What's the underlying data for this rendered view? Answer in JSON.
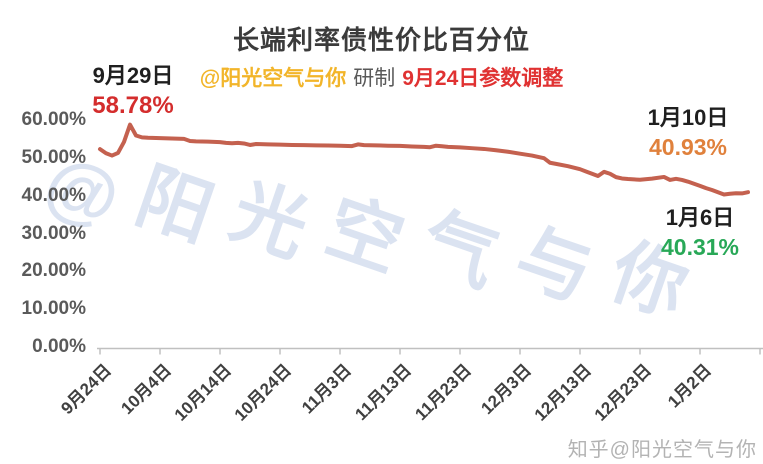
{
  "header": {
    "title": "长端利率债性价比百分位",
    "subtitle_author": "@阳光空气与你",
    "subtitle_middle": "研制",
    "subtitle_note": "9月24日参数调整"
  },
  "annotations": {
    "peak": {
      "date": "9月29日",
      "value": "58.78%"
    },
    "latest": {
      "date": "1月10日",
      "value": "40.93%"
    },
    "low": {
      "date": "1月6日",
      "value": "40.31%"
    }
  },
  "watermark": {
    "diagonal": "@阳光空气与你",
    "zhihu": "知乎@阳光空气与你"
  },
  "colors": {
    "line": "#c4614f",
    "title": "#3b3b3b",
    "gold": "#f2b52a",
    "red": "#e03232",
    "value-red": "#d42d2d",
    "orange": "#e0813c",
    "green": "#28a857",
    "date": "#1f1f1f",
    "axis": "#c0c0c0",
    "xlabel": "#3f3f3f",
    "ylabel": "#5a5a5a",
    "watermark": "#dbe3f1",
    "zhihu": "#b3b3b3"
  },
  "chart_data": {
    "type": "line",
    "title": "长端利率债性价比百分位",
    "xlabel": "",
    "ylabel": "",
    "ylim": [
      0,
      60
    ],
    "grid": false,
    "legend": "none",
    "y_ticks": [
      {
        "value": 0,
        "label": "0.00%"
      },
      {
        "value": 10,
        "label": "10.00%"
      },
      {
        "value": 20,
        "label": "20.00%"
      },
      {
        "value": 30,
        "label": "30.00%"
      },
      {
        "value": 40,
        "label": "40.00%"
      },
      {
        "value": 50,
        "label": "50.00%"
      },
      {
        "value": 60,
        "label": "60.00%"
      }
    ],
    "x_ticks": [
      {
        "offset": 0,
        "label": "9月24日"
      },
      {
        "offset": 10,
        "label": "10月4日"
      },
      {
        "offset": 20,
        "label": "10月14日"
      },
      {
        "offset": 30,
        "label": "10月24日"
      },
      {
        "offset": 40,
        "label": "11月3日"
      },
      {
        "offset": 50,
        "label": "11月13日"
      },
      {
        "offset": 60,
        "label": "11月23日"
      },
      {
        "offset": 70,
        "label": "12月3日"
      },
      {
        "offset": 80,
        "label": "12月13日"
      },
      {
        "offset": 90,
        "label": "12月23日"
      },
      {
        "offset": 100,
        "label": "1月2日"
      }
    ],
    "extra_tick_offsets": [
      110
    ],
    "key_points": [
      {
        "date": "9月29日",
        "offset": 5,
        "value": 58.78
      },
      {
        "date": "1月6日",
        "offset": 104,
        "value": 40.31
      },
      {
        "date": "1月10日",
        "offset": 108,
        "value": 40.93
      }
    ],
    "series": [
      {
        "name": "长端利率债性价比百分位",
        "points": [
          [
            0,
            52.3
          ],
          [
            1,
            51.2
          ],
          [
            2,
            50.6
          ],
          [
            3,
            51.3
          ],
          [
            4,
            54.2
          ],
          [
            5,
            58.78
          ],
          [
            6,
            55.9
          ],
          [
            7,
            55.4
          ],
          [
            8,
            55.3
          ],
          [
            10,
            55.2
          ],
          [
            12,
            55.1
          ],
          [
            14,
            55.0
          ],
          [
            15,
            54.45
          ],
          [
            16,
            54.35
          ],
          [
            18,
            54.3
          ],
          [
            20,
            54.15
          ],
          [
            21,
            53.95
          ],
          [
            22,
            53.85
          ],
          [
            23,
            53.95
          ],
          [
            24,
            53.8
          ],
          [
            25,
            53.4
          ],
          [
            26,
            53.65
          ],
          [
            28,
            53.55
          ],
          [
            30,
            53.5
          ],
          [
            32,
            53.4
          ],
          [
            34,
            53.35
          ],
          [
            36,
            53.3
          ],
          [
            38,
            53.25
          ],
          [
            40,
            53.2
          ],
          [
            42,
            53.1
          ],
          [
            43,
            53.55
          ],
          [
            44,
            53.35
          ],
          [
            46,
            53.3
          ],
          [
            48,
            53.2
          ],
          [
            50,
            53.15
          ],
          [
            52,
            53.0
          ],
          [
            54,
            52.9
          ],
          [
            55,
            52.8
          ],
          [
            56,
            53.2
          ],
          [
            57,
            53.05
          ],
          [
            58,
            52.9
          ],
          [
            60,
            52.75
          ],
          [
            62,
            52.55
          ],
          [
            64,
            52.35
          ],
          [
            66,
            52.0
          ],
          [
            68,
            51.6
          ],
          [
            70,
            51.1
          ],
          [
            72,
            50.6
          ],
          [
            74,
            49.9
          ],
          [
            75,
            48.7
          ],
          [
            76,
            48.4
          ],
          [
            78,
            47.8
          ],
          [
            80,
            47.0
          ],
          [
            81,
            46.4
          ],
          [
            82,
            45.8
          ],
          [
            83,
            45.2
          ],
          [
            84,
            46.3
          ],
          [
            85,
            45.8
          ],
          [
            86,
            44.9
          ],
          [
            87,
            44.55
          ],
          [
            88,
            44.4
          ],
          [
            90,
            44.2
          ],
          [
            92,
            44.5
          ],
          [
            94,
            44.95
          ],
          [
            95,
            44.15
          ],
          [
            96,
            44.45
          ],
          [
            97,
            44.15
          ],
          [
            98,
            43.7
          ],
          [
            100,
            42.6
          ],
          [
            101,
            42.0
          ],
          [
            102,
            41.5
          ],
          [
            103,
            40.9
          ],
          [
            104,
            40.31
          ],
          [
            105,
            40.5
          ],
          [
            106,
            40.65
          ],
          [
            107,
            40.6
          ],
          [
            108,
            40.93
          ]
        ]
      }
    ]
  }
}
